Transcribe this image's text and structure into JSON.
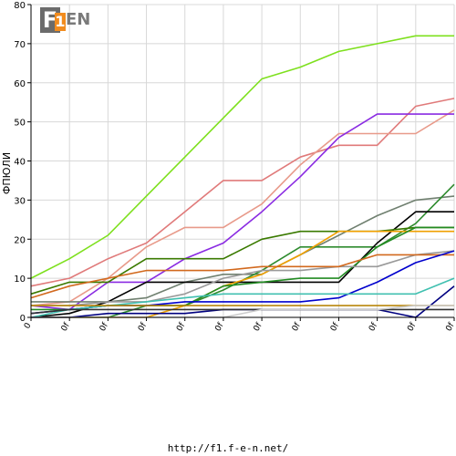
{
  "logo": {
    "f": "F",
    "one": "1",
    "en": "EN"
  },
  "footer": {
    "url": "http://f1.f-e-n.net/"
  },
  "colors": {
    "grid": "#d8d8d8",
    "axis": "#000000"
  },
  "chart_data": {
    "type": "line",
    "ylabel": "ФПЮЛИ",
    "xlabel": "",
    "ylim": [
      0,
      80
    ],
    "yticks": [
      0,
      10,
      20,
      30,
      40,
      50,
      60,
      70,
      80
    ],
    "grid": true,
    "legend": "none",
    "categories": [
      "0",
      "0f",
      "0f",
      "0f",
      "0f",
      "0f",
      "0f",
      "0f",
      "0f",
      "0f",
      "0f",
      "0f"
    ],
    "series": [
      {
        "color": "#7ee01e",
        "values": [
          10,
          15,
          21,
          31,
          41,
          51,
          61,
          64,
          68,
          70,
          72,
          72
        ]
      },
      {
        "color": "#e07a7a",
        "values": [
          8,
          10,
          15,
          19,
          27,
          35,
          35,
          41,
          44,
          44,
          54,
          56
        ]
      },
      {
        "color": "#e89a8a",
        "values": [
          3,
          4,
          10,
          18,
          23,
          23,
          29,
          39,
          47,
          47,
          47,
          53
        ]
      },
      {
        "color": "#8a2be2",
        "values": [
          3,
          2,
          9,
          9,
          15,
          19,
          27,
          36,
          46,
          52,
          52,
          52
        ]
      },
      {
        "color": "#708070",
        "values": [
          4,
          4,
          4,
          5,
          9,
          11,
          11,
          16,
          21,
          26,
          30,
          31
        ]
      },
      {
        "color": "#2e8b2e",
        "values": [
          0,
          0,
          0,
          3,
          3,
          7,
          12,
          18,
          18,
          18,
          24,
          34
        ]
      },
      {
        "color": "#000000",
        "values": [
          0,
          1,
          4,
          9,
          9,
          9,
          9,
          9,
          9,
          19,
          27,
          27
        ]
      },
      {
        "color": "#3a7a00",
        "values": [
          6,
          9,
          9,
          15,
          15,
          15,
          20,
          22,
          22,
          22,
          23,
          23
        ]
      },
      {
        "color": "#f0a000",
        "values": [
          0,
          0,
          0,
          0,
          3,
          8,
          11,
          16,
          22,
          22,
          22,
          22
        ]
      },
      {
        "color": "#228b22",
        "values": [
          2,
          2,
          3,
          3,
          3,
          8,
          9,
          10,
          10,
          18,
          23,
          23
        ]
      },
      {
        "color": "#999999",
        "values": [
          3,
          3,
          4,
          4,
          6,
          10,
          12,
          12,
          13,
          13,
          16,
          17
        ]
      },
      {
        "color": "#d2691e",
        "values": [
          5,
          8,
          10,
          12,
          12,
          12,
          13,
          13,
          13,
          16,
          16,
          16
        ]
      },
      {
        "color": "#0000cd",
        "values": [
          1,
          2,
          3,
          3,
          4,
          4,
          4,
          4,
          5,
          9,
          14,
          17
        ]
      },
      {
        "color": "#40c0b0",
        "values": [
          0,
          2,
          3,
          4,
          5,
          6,
          6,
          6,
          6,
          6,
          6,
          10
        ]
      },
      {
        "color": "#b8860b",
        "values": [
          3,
          3,
          3,
          3,
          3,
          3,
          3,
          3,
          3,
          3,
          3,
          3
        ]
      },
      {
        "color": "#000080",
        "values": [
          0,
          0,
          1,
          1,
          1,
          2,
          2,
          2,
          2,
          2,
          0,
          8
        ]
      },
      {
        "color": "#333333",
        "values": [
          1,
          2,
          2,
          2,
          2,
          2,
          2,
          2,
          2,
          2,
          2,
          2
        ]
      },
      {
        "color": "#cccccc",
        "values": [
          0,
          0,
          0,
          0,
          0,
          0,
          2,
          2,
          2,
          2,
          3,
          3
        ]
      }
    ]
  }
}
